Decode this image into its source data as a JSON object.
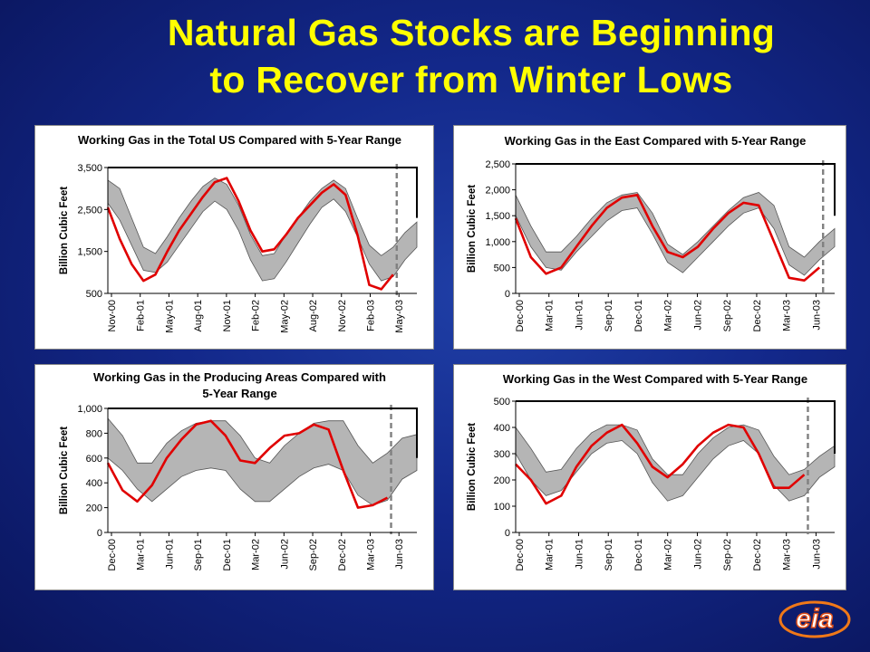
{
  "slide": {
    "title_line1": "Natural Gas Stocks are Beginning",
    "title_line2": "to Recover from Winter Lows",
    "logo_text": "eia"
  },
  "colors": {
    "background": "#13288a",
    "title": "#ffff00",
    "current_line": "#e00000",
    "range_band": "#b5b5b5",
    "date_marker": "#808080"
  },
  "chart_data": [
    {
      "type": "area",
      "title": "Working Gas in the Total US Compared with 5-Year Range",
      "ylabel": "Billion Cubic Feet",
      "ylim": [
        500,
        3500
      ],
      "yticks": [
        500,
        1500,
        2500,
        3500
      ],
      "ytick_labels": [
        "500",
        "1,500",
        "2,500",
        "3,500"
      ],
      "xtick_labels": [
        "Nov-00",
        "Feb-01",
        "May-01",
        "Aug-01",
        "Nov-01",
        "Feb-02",
        "May-02",
        "Aug-02",
        "Nov-02",
        "Feb-03",
        "May-03"
      ],
      "x_period": "Nov-00 to Jul-03",
      "range_low": [
        2650,
        2250,
        1650,
        1050,
        1000,
        1250,
        1650,
        2050,
        2450,
        2700,
        2500,
        2000,
        1300,
        800,
        850,
        1250,
        1700,
        2150,
        2550,
        2750,
        2450,
        1850,
        1200,
        800,
        900,
        1300,
        1600
      ],
      "range_high": [
        3200,
        3000,
        2300,
        1600,
        1450,
        1850,
        2300,
        2700,
        3050,
        3250,
        3100,
        2600,
        1900,
        1400,
        1450,
        1900,
        2300,
        2700,
        3000,
        3200,
        3000,
        2300,
        1650,
        1400,
        1600,
        1950,
        2200
      ],
      "current": [
        2550,
        1800,
        1200,
        800,
        950,
        1500,
        2000,
        2400,
        2800,
        3150,
        3250,
        2700,
        2000,
        1500,
        1550,
        1900,
        2300,
        2600,
        2900,
        3100,
        2850,
        1900,
        700,
        600,
        950
      ],
      "marker_position": "May-03"
    },
    {
      "type": "area",
      "title": "Working Gas in the East Compared with 5-Year Range",
      "ylabel": "Billion Cubic Feet",
      "ylim": [
        0,
        2500
      ],
      "yticks": [
        0,
        500,
        1000,
        1500,
        2000,
        2500
      ],
      "ytick_labels": [
        "0",
        "500",
        "1,000",
        "1,500",
        "2,000",
        "2,500"
      ],
      "xtick_labels": [
        "Dec-00",
        "Mar-01",
        "Jun-01",
        "Sep-01",
        "Dec-01",
        "Mar-02",
        "Jun-02",
        "Sep-02",
        "Dec-02",
        "Mar-03",
        "Jun-03"
      ],
      "x_period": "Dec-00 to Jul-03",
      "range_low": [
        1500,
        900,
        500,
        450,
        800,
        1100,
        1400,
        1600,
        1650,
        1150,
        600,
        400,
        700,
        1000,
        1300,
        1550,
        1650,
        1250,
        550,
        350,
        650,
        900
      ],
      "range_high": [
        1900,
        1300,
        800,
        800,
        1100,
        1450,
        1750,
        1900,
        1950,
        1550,
        950,
        750,
        1000,
        1300,
        1600,
        1850,
        1950,
        1700,
        900,
        700,
        1000,
        1250
      ],
      "current": [
        1450,
        700,
        380,
        500,
        900,
        1300,
        1650,
        1850,
        1900,
        1300,
        800,
        700,
        900,
        1250,
        1550,
        1750,
        1700,
        1000,
        300,
        250,
        500
      ],
      "marker_position": "Jun-03"
    },
    {
      "type": "area",
      "title": "Working Gas in the Producing Areas Compared with 5-Year Range",
      "ylabel": "Billion Cubic Feet",
      "ylim": [
        0,
        1000
      ],
      "yticks": [
        0,
        200,
        400,
        600,
        800,
        1000
      ],
      "ytick_labels": [
        "0",
        "200",
        "400",
        "600",
        "800",
        "1,000"
      ],
      "xtick_labels": [
        "Dec-00",
        "Mar-01",
        "Jun-01",
        "Sep-01",
        "Dec-01",
        "Mar-02",
        "Jun-02",
        "Sep-02",
        "Dec-02",
        "Mar-03",
        "Jun-03"
      ],
      "x_period": "Dec-00 to Jul-03",
      "range_low": [
        600,
        500,
        350,
        250,
        350,
        450,
        500,
        520,
        500,
        350,
        250,
        250,
        350,
        450,
        520,
        550,
        500,
        300,
        220,
        260,
        430,
        500
      ],
      "range_high": [
        920,
        780,
        560,
        560,
        720,
        820,
        880,
        900,
        900,
        780,
        600,
        560,
        700,
        800,
        880,
        900,
        900,
        700,
        560,
        640,
        760,
        790
      ],
      "current": [
        560,
        340,
        250,
        380,
        600,
        750,
        870,
        900,
        780,
        580,
        560,
        680,
        780,
        800,
        870,
        830,
        500,
        200,
        220,
        280
      ],
      "marker_position": "Jun-03"
    },
    {
      "type": "area",
      "title": "Working Gas in the West Compared with 5-Year Range",
      "ylabel": "Billion Cubic Feet",
      "ylim": [
        0,
        500
      ],
      "yticks": [
        0,
        100,
        200,
        300,
        400,
        500
      ],
      "ytick_labels": [
        "0",
        "100",
        "200",
        "300",
        "400",
        "500"
      ],
      "xtick_labels": [
        "Dec-00",
        "Mar-01",
        "Jun-01",
        "Sep-01",
        "Dec-01",
        "Mar-02",
        "Jun-02",
        "Sep-02",
        "Dec-02",
        "Mar-03",
        "Jun-03"
      ],
      "x_period": "Dec-00 to Jul-03",
      "range_low": [
        300,
        200,
        140,
        160,
        230,
        300,
        340,
        350,
        300,
        190,
        120,
        140,
        210,
        280,
        330,
        350,
        300,
        180,
        120,
        140,
        210,
        250
      ],
      "range_high": [
        400,
        320,
        230,
        240,
        320,
        380,
        410,
        410,
        390,
        280,
        220,
        220,
        300,
        360,
        400,
        410,
        390,
        290,
        220,
        240,
        290,
        330
      ],
      "current": [
        260,
        200,
        110,
        140,
        250,
        330,
        380,
        410,
        340,
        250,
        210,
        260,
        330,
        380,
        410,
        400,
        300,
        170,
        170,
        220
      ],
      "marker_position": "Jun-03"
    }
  ]
}
